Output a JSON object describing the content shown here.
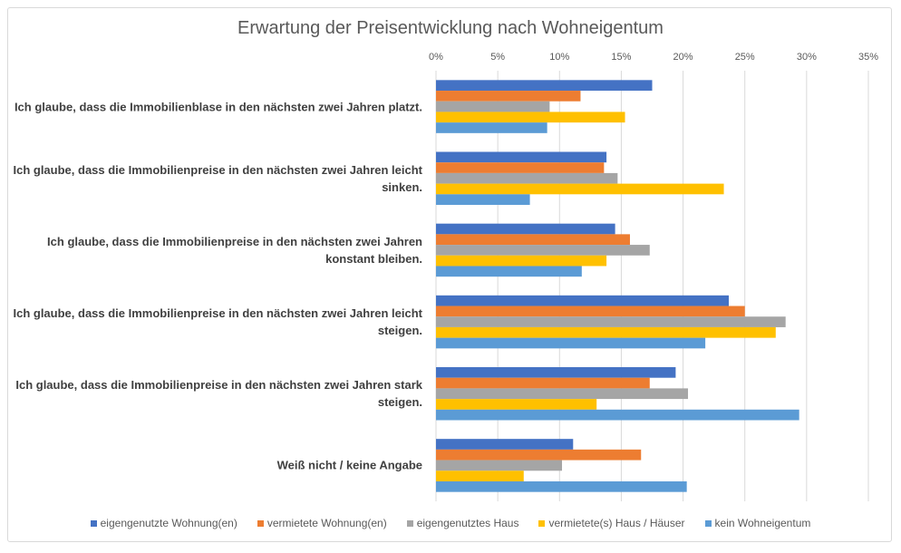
{
  "chart_data": {
    "type": "bar",
    "orientation": "horizontal",
    "title": "Erwartung der Preisentwicklung nach Wohneigentum",
    "categories": [
      "Ich glaube, dass die Immobilienblase in den nächsten zwei Jahren platzt.",
      "Ich glaube, dass die Immobilienpreise in den nächsten zwei Jahren leicht sinken.",
      "Ich glaube, dass die Immobilienpreise in den nächsten zwei Jahren konstant bleiben.",
      "Ich glaube, dass die Immobilienpreise in den nächsten zwei Jahren leicht steigen.",
      "Ich glaube, dass die Immobilienpreise in den nächsten zwei Jahren stark steigen.",
      "Weiß nicht / keine Angabe"
    ],
    "series": [
      {
        "name": "eigengenutzte Wohnung(en)",
        "color": "#4472c4",
        "values": [
          17.5,
          13.8,
          14.5,
          23.7,
          19.4,
          11.1
        ]
      },
      {
        "name": "vermietete Wohnung(en)",
        "color": "#ed7d31",
        "values": [
          11.7,
          13.6,
          15.7,
          25.0,
          17.3,
          16.6
        ]
      },
      {
        "name": "eigengenutztes Haus",
        "color": "#a5a5a5",
        "values": [
          9.2,
          14.7,
          17.3,
          28.3,
          20.4,
          10.2
        ]
      },
      {
        "name": "vermietete(s) Haus / Häuser",
        "color": "#ffc000",
        "values": [
          15.3,
          23.3,
          13.8,
          27.5,
          13.0,
          7.1
        ]
      },
      {
        "name": "kein Wohneigentum",
        "color": "#5b9bd5",
        "values": [
          9.0,
          7.6,
          11.8,
          21.8,
          29.4,
          20.3
        ]
      }
    ],
    "xlim": [
      0,
      35
    ],
    "xticks": [
      "0%",
      "5%",
      "10%",
      "15%",
      "20%",
      "25%",
      "30%",
      "35%"
    ],
    "unit": "%",
    "axis_position": "top",
    "grid": true,
    "legend": "bottom"
  }
}
